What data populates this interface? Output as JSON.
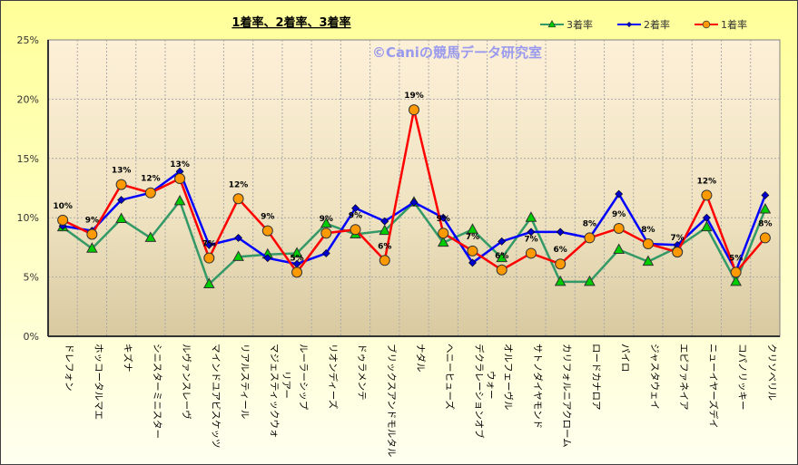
{
  "chart_data": {
    "type": "line",
    "title": "1着率、2着率、3着率",
    "watermark": "©Caniの競馬データ研究室",
    "xlabel": "",
    "ylabel": "",
    "ylim": [
      0,
      25
    ],
    "yticks": [
      "0%",
      "5%",
      "10%",
      "15%",
      "20%",
      "25%"
    ],
    "grid": true,
    "legend_position": "top-right",
    "categories": [
      "ドレフォン",
      "ホッコータルマエ",
      "キズナ",
      "シニスターミニスター",
      "ルヴァンスレーヴ",
      "マインドユアビスケッツ",
      "リアルスティール",
      "マジェスティックウォリアー",
      "ルーラーシップ",
      "リオンディーズ",
      "ドゥラメンテ",
      "ブリックスアンドモルタル",
      "ナダル",
      "ヘニーヒューズ",
      "デクラレーションオブウォー",
      "オルフェーヴル",
      "サトノダイヤモンド",
      "カリフォルニアクローム",
      "ロードカナロア",
      "パイロ",
      "ジャスタウェイ",
      "エピファネイア",
      "ニューイヤーズデイ",
      "コパノリッキー",
      "クリソベリル"
    ],
    "series": [
      {
        "name": "3着率",
        "color": "#339966",
        "marker": "triangle",
        "marker_color": "#00cc00",
        "values": [
          9.2,
          7.4,
          9.9,
          8.3,
          11.4,
          4.4,
          6.7,
          6.9,
          7.0,
          9.5,
          8.6,
          8.9,
          11.3,
          7.9,
          9.0,
          6.6,
          10.0,
          4.6,
          4.6,
          7.3,
          6.3,
          7.5,
          9.2,
          4.6,
          10.7
        ]
      },
      {
        "name": "2着率",
        "color": "#0000ff",
        "marker": "diamond",
        "marker_color": "#0000cc",
        "values": [
          9.3,
          8.9,
          11.5,
          12.1,
          13.9,
          7.7,
          8.3,
          6.6,
          6.1,
          7.0,
          10.8,
          9.7,
          11.3,
          10.0,
          6.2,
          8.0,
          8.8,
          8.8,
          8.3,
          12.0,
          7.8,
          7.7,
          10.0,
          5.5,
          11.9
        ]
      },
      {
        "name": "1着率",
        "color": "#ff0000",
        "marker": "circle",
        "marker_color": "#ff9900",
        "values": [
          9.8,
          8.6,
          12.8,
          12.1,
          13.3,
          6.6,
          11.6,
          8.9,
          5.4,
          8.7,
          9.0,
          6.4,
          19.1,
          8.7,
          7.2,
          5.6,
          7.0,
          6.1,
          8.3,
          9.1,
          7.8,
          7.1,
          11.9,
          5.4,
          8.3
        ],
        "data_labels": [
          "10%",
          "9%",
          "13%",
          "12%",
          "13%",
          "7%",
          "12%",
          "9%",
          "5%",
          "9%",
          "9%",
          "6%",
          "19%",
          "9%",
          "7%",
          "6%",
          "7%",
          "6%",
          "8%",
          "9%",
          "8%",
          "7%",
          "12%",
          "5%",
          "8%"
        ]
      }
    ]
  }
}
